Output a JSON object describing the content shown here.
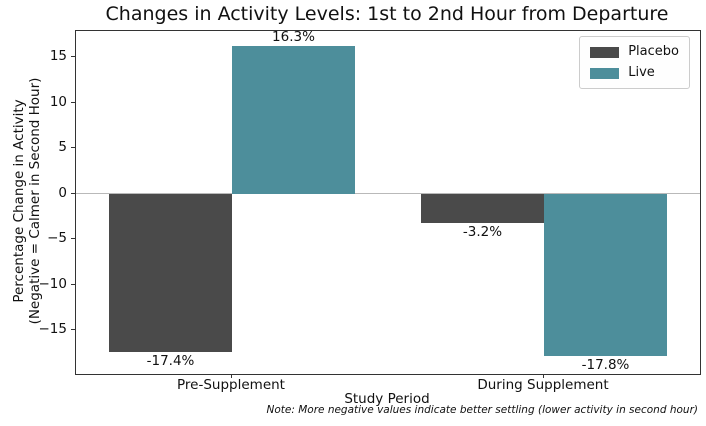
{
  "chart_data": {
    "type": "bar",
    "title": "Changes in Activity Levels: 1st to 2nd Hour from Departure",
    "categories": [
      "Pre-Supplement",
      "During Supplement"
    ],
    "series": [
      {
        "name": "Placebo",
        "color": "#4a4a4a",
        "values": [
          -17.4,
          -3.2
        ],
        "value_labels": [
          "-17.4%",
          "-3.2%"
        ]
      },
      {
        "name": "Live",
        "color": "#4d8e9b",
        "values": [
          16.3,
          -17.8
        ],
        "value_labels": [
          "16.3%",
          "-17.8%"
        ]
      }
    ],
    "xlabel": "Study Period",
    "ylabel_lines": [
      "Percentage Change in Activity",
      "(Negative = Calmer in Second Hour)"
    ],
    "yticks": [
      15,
      10,
      5,
      0,
      -5,
      -10,
      -15
    ],
    "ytick_labels": [
      "15",
      "10",
      "5",
      "0",
      "−5",
      "−10",
      "−15"
    ],
    "ylim": [
      -19.8,
      17.9
    ],
    "legend_position": "upper right",
    "grid": false,
    "zero_line_color": "#b9b9b9",
    "note": "Note: More negative values indicate better settling (lower activity in second hour)"
  }
}
